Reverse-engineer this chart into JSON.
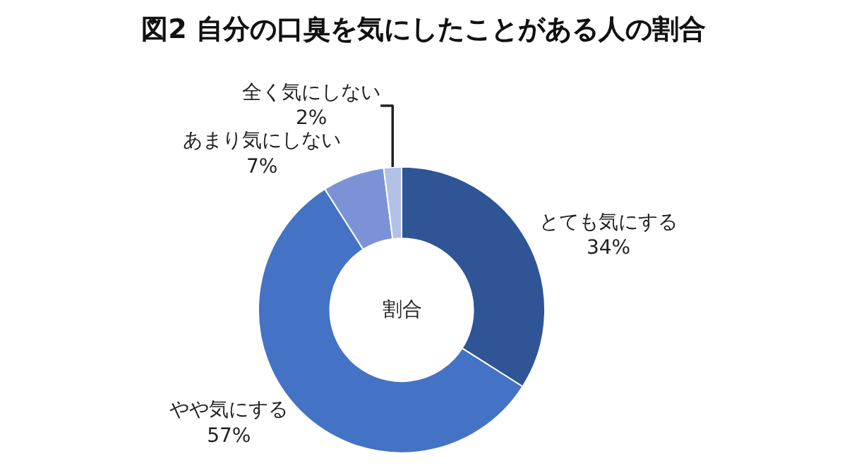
{
  "chart_data": {
    "type": "donut",
    "title": "図2 自分の口臭を気にしたことがある人の割合",
    "categories": [
      "とても気にする",
      "やや気にする",
      "あまり気にしない",
      "全く気にしない"
    ],
    "values": [
      34,
      57,
      7,
      2
    ],
    "value_labels": [
      "34%",
      "57%",
      "7%",
      "2%"
    ],
    "colors": [
      "#2f5597",
      "#4472c4",
      "#7b93d6",
      "#b4c1e6"
    ],
    "annotations": [
      "割合"
    ],
    "legend": false
  }
}
